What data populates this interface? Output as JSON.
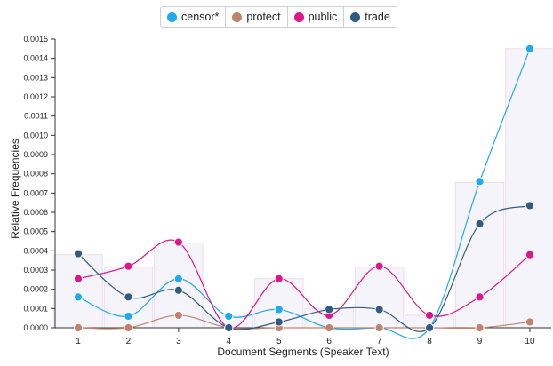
{
  "chart_data": {
    "type": "line",
    "xlabel": "Document Segments (Speaker Text)",
    "ylabel": "Relative Frequencies",
    "ylim": [
      0,
      0.0015
    ],
    "y_ticks": [
      "0.0000",
      "0.0001",
      "0.0002",
      "0.0003",
      "0.0004",
      "0.0005",
      "0.0006",
      "0.0007",
      "0.0008",
      "0.0009",
      "0.0010",
      "0.0011",
      "0.0012",
      "0.0013",
      "0.0014",
      "0.0015"
    ],
    "categories": [
      "1",
      "2",
      "3",
      "4",
      "5",
      "6",
      "7",
      "8",
      "9",
      "10"
    ],
    "series": [
      {
        "name": "censor*",
        "color": "#1ea9f0",
        "values": [
          0.00016,
          6e-05,
          0.000255,
          6e-05,
          9.5e-05,
          0.0,
          0.0,
          0.0,
          0.00076,
          0.00145
        ]
      },
      {
        "name": "protect",
        "color": "#c0826a",
        "values": [
          0.0,
          0.0,
          6.5e-05,
          0.0,
          0.0,
          0.0,
          0.0,
          0.0,
          0.0,
          3e-05
        ]
      },
      {
        "name": "public",
        "color": "#e0148c",
        "values": [
          0.000255,
          0.00032,
          0.000445,
          0.0,
          0.000255,
          6.5e-05,
          0.00032,
          6.5e-05,
          0.00016,
          0.00038
        ]
      },
      {
        "name": "trade",
        "color": "#2f5b86",
        "values": [
          0.000385,
          0.00016,
          0.000195,
          0.0,
          3e-05,
          9.5e-05,
          9.5e-05,
          0.0,
          0.00054,
          0.000635
        ]
      }
    ],
    "bar_totals": [
      0.00038,
      0.000315,
      0.00044,
      6e-05,
      0.000255,
      0.0001,
      0.000315,
      6.5e-05,
      0.000755,
      0.00145
    ],
    "grid": false,
    "legend": "top"
  }
}
